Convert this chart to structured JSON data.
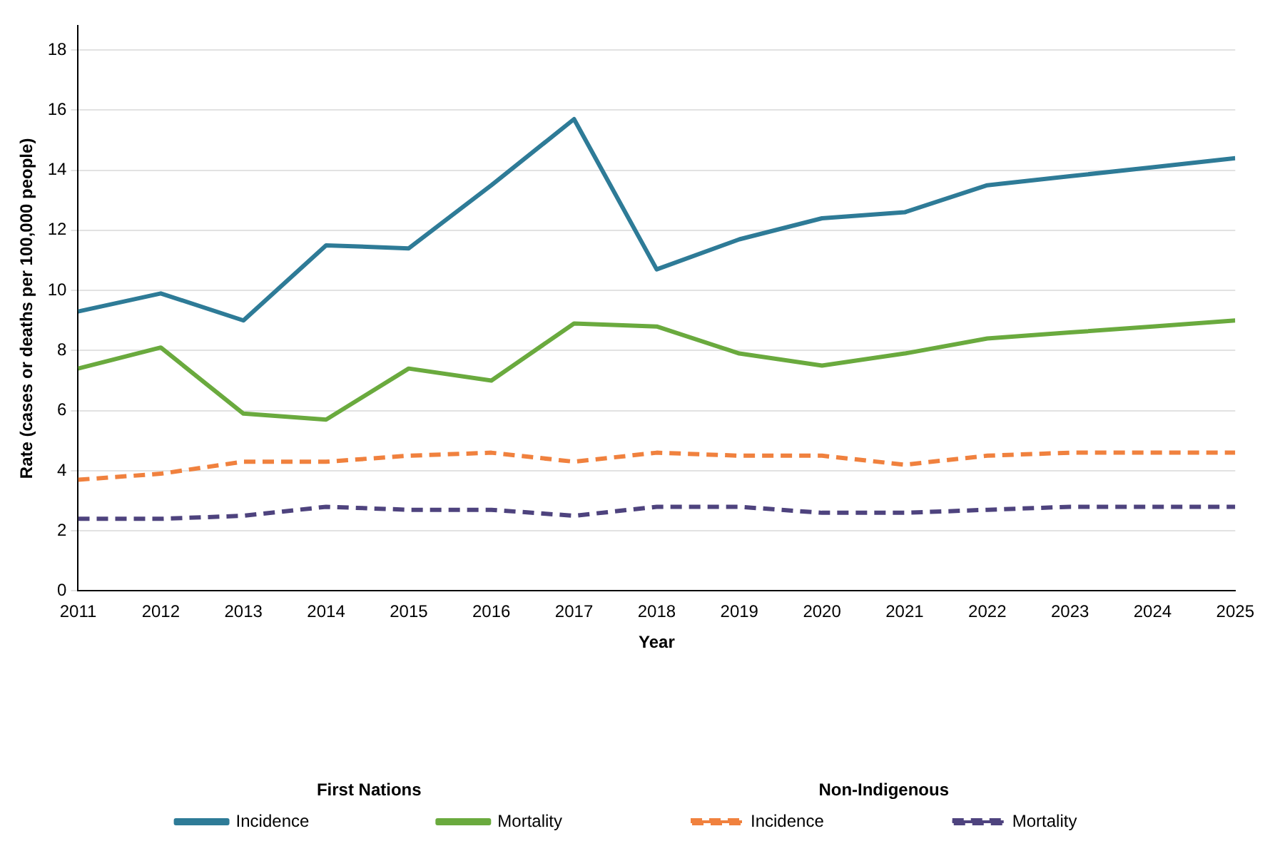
{
  "chart_data": {
    "type": "line",
    "xlabel": "Year",
    "ylabel": "Rate (cases or deaths per 100,000 people)",
    "x": [
      2011,
      2012,
      2013,
      2014,
      2015,
      2016,
      2017,
      2018,
      2019,
      2020,
      2021,
      2022,
      2023,
      2024,
      2025
    ],
    "series": [
      {
        "name": "Incidence",
        "color": "#2e7b97",
        "line_style": "solid",
        "values": [
          9.3,
          9.9,
          9.0,
          11.5,
          11.4,
          13.5,
          15.7,
          10.7,
          11.7,
          12.4,
          12.6,
          13.5,
          13.8,
          14.1,
          14.4
        ]
      },
      {
        "name": "Mortality",
        "color": "#6aaa3e",
        "line_style": "solid",
        "values": [
          7.4,
          8.1,
          5.9,
          5.7,
          7.4,
          7.0,
          8.9,
          8.8,
          7.9,
          7.5,
          7.9,
          8.4,
          8.6,
          8.8,
          9.0
        ]
      },
      {
        "name": "Incidence",
        "color": "#f0813e",
        "line_style": "dashed",
        "values": [
          3.7,
          3.9,
          4.3,
          4.3,
          4.5,
          4.6,
          4.3,
          4.6,
          4.5,
          4.5,
          4.2,
          4.5,
          4.6,
          4.6,
          4.6
        ]
      },
      {
        "name": "Mortality",
        "color": "#4e437e",
        "line_style": "dashed",
        "values": [
          2.4,
          2.4,
          2.5,
          2.8,
          2.7,
          2.7,
          2.5,
          2.8,
          2.8,
          2.6,
          2.6,
          2.7,
          2.8,
          2.8,
          2.8
        ]
      }
    ],
    "annotations": [
      "First Nations",
      "Non-Indigenous"
    ],
    "xlim": [
      2011,
      2025
    ],
    "xticks": [
      2011,
      2012,
      2013,
      2014,
      2015,
      2016,
      2017,
      2018,
      2019,
      2020,
      2021,
      2022,
      2023,
      2024,
      2025
    ],
    "ylim": [
      0,
      18.8
    ],
    "yticks": [
      0,
      2,
      4,
      6,
      8,
      10,
      12,
      14,
      16,
      18
    ],
    "grid": "y",
    "legend": "bottom",
    "marker": "none"
  }
}
